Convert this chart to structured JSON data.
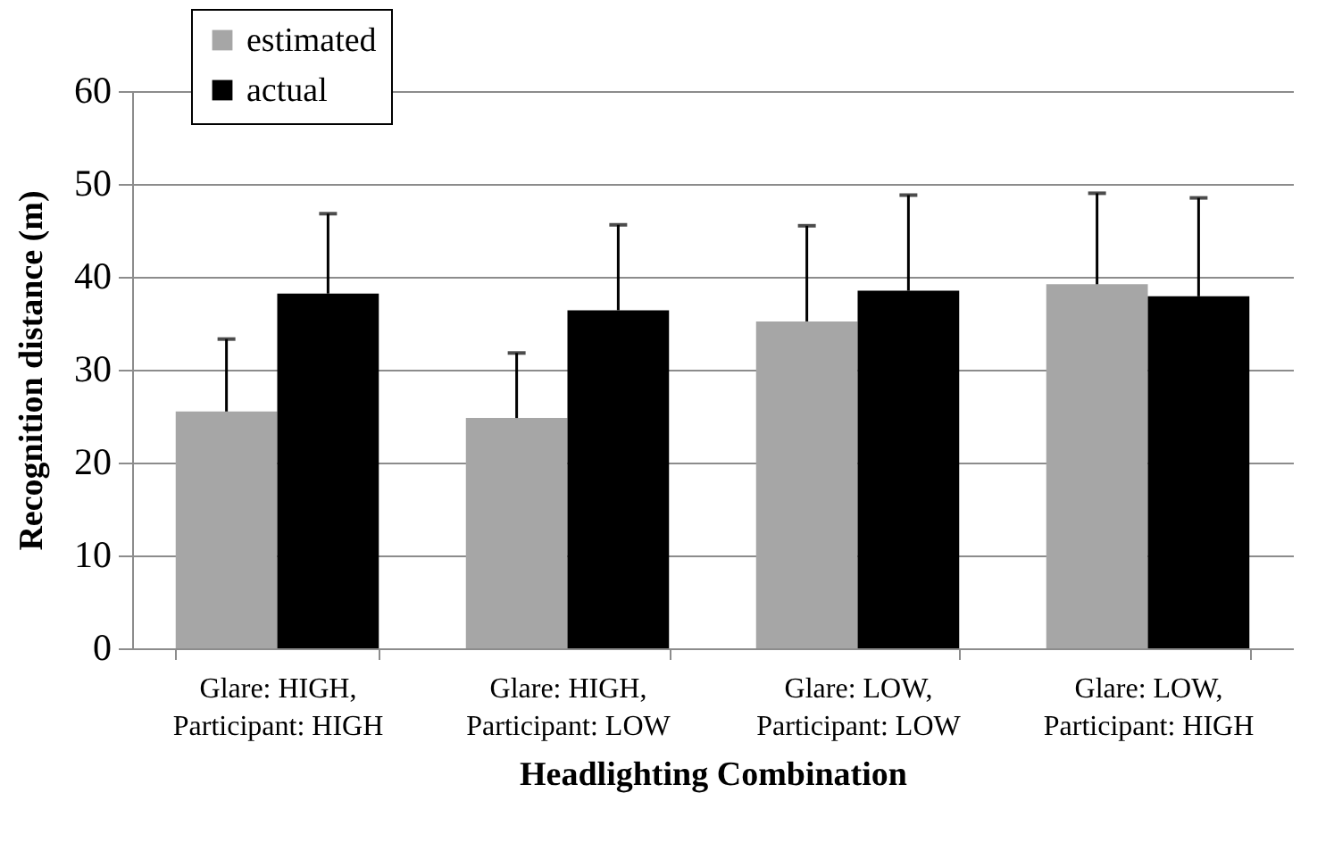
{
  "chart_data": {
    "type": "bar",
    "xlabel": "Headlighting Combination",
    "ylabel": "Recognition distance (m)",
    "categories": [
      "Glare: HIGH,\nParticipant: HIGH",
      "Glare: HIGH,\nParticipant: LOW",
      "Glare: LOW,\nParticipant: LOW",
      "Glare: LOW,\nParticipant: HIGH"
    ],
    "series": [
      {
        "name": "estimated",
        "color": "#a6a6a6",
        "values": [
          25.5,
          24.8,
          35.2,
          39.2
        ],
        "errors": [
          [
            25.5,
            33.3
          ],
          [
            24.8,
            31.8
          ],
          [
            35.2,
            45.5
          ],
          [
            39.2,
            49.0
          ]
        ]
      },
      {
        "name": "actual",
        "color": "#000000",
        "values": [
          38.2,
          36.4,
          38.5,
          37.9
        ],
        "errors": [
          [
            38.2,
            46.8
          ],
          [
            36.4,
            45.6
          ],
          [
            38.5,
            48.8
          ],
          [
            37.9,
            48.5
          ]
        ]
      }
    ],
    "ylim": [
      0,
      60
    ],
    "yticks": [
      0,
      10,
      20,
      30,
      40,
      50,
      60
    ],
    "grid": "y",
    "legend": "top left"
  }
}
